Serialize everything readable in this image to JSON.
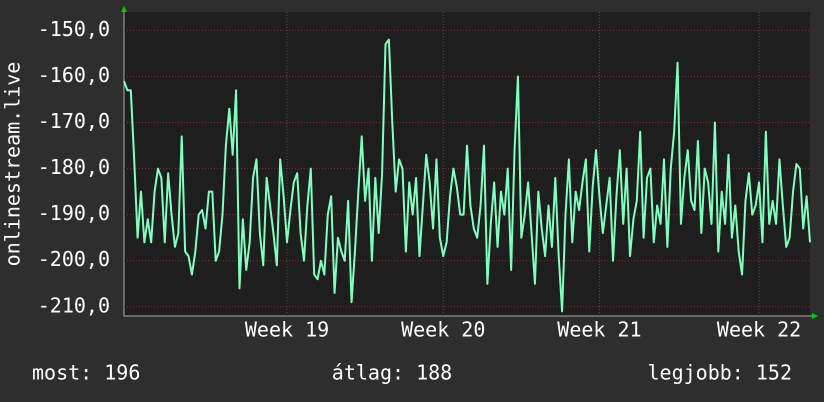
{
  "chart_data": {
    "type": "line",
    "y_label": "onlinestream.live",
    "ylim": [
      -212,
      -146
    ],
    "yticks": [
      {
        "value": -150,
        "label": "-150,0"
      },
      {
        "value": -160,
        "label": "-160,0"
      },
      {
        "value": -170,
        "label": "-170,0"
      },
      {
        "value": -180,
        "label": "-180,0"
      },
      {
        "value": -190,
        "label": "-190,0"
      },
      {
        "value": -200,
        "label": "-200,0"
      },
      {
        "value": -210,
        "label": "-210,0"
      }
    ],
    "xlim": [
      0,
      202
    ],
    "xticks": [
      {
        "value": 48,
        "label": "Week 19"
      },
      {
        "value": 94,
        "label": "Week 20"
      },
      {
        "value": 140,
        "label": "Week 21"
      },
      {
        "value": 187,
        "label": "Week 22"
      }
    ],
    "grid": true,
    "color": "#80ffc0",
    "values": [
      -161,
      -163,
      -163,
      -178,
      -195,
      -185,
      -196,
      -191,
      -196,
      -185,
      -180,
      -182,
      -196,
      -181,
      -190,
      -197,
      -194,
      -173,
      -198,
      -199,
      -203,
      -198,
      -190,
      -189,
      -193,
      -185,
      -185,
      -200,
      -198,
      -190,
      -175,
      -167,
      -177,
      -163,
      -206,
      -191,
      -202,
      -196,
      -182,
      -178,
      -194,
      -201,
      -182,
      -188,
      -194,
      -201,
      -178,
      -186,
      -196,
      -189,
      -183,
      -181,
      -194,
      -200,
      -188,
      -180,
      -203,
      -204,
      -200,
      -203,
      -190,
      -186,
      -207,
      -195,
      -198,
      -200,
      -187,
      -209,
      -198,
      -185,
      -173,
      -187,
      -180,
      -200,
      -182,
      -194,
      -181,
      -153,
      -152,
      -170,
      -185,
      -178,
      -180,
      -198,
      -183,
      -190,
      -182,
      -199,
      -188,
      -177,
      -183,
      -193,
      -178,
      -195,
      -199,
      -196,
      -186,
      -180,
      -184,
      -190,
      -190,
      -175,
      -188,
      -193,
      -195,
      -188,
      -175,
      -205,
      -192,
      -183,
      -197,
      -185,
      -190,
      -180,
      -202,
      -176,
      -160,
      -195,
      -190,
      -183,
      -194,
      -205,
      -185,
      -193,
      -199,
      -188,
      -197,
      -182,
      -199,
      -211,
      -190,
      -178,
      -196,
      -185,
      -189,
      -183,
      -178,
      -198,
      -184,
      -176,
      -186,
      -194,
      -188,
      -182,
      -200,
      -186,
      -176,
      -192,
      -180,
      -199,
      -191,
      -187,
      -172,
      -195,
      -182,
      -180,
      -196,
      -188,
      -192,
      -178,
      -197,
      -180,
      -172,
      -157,
      -192,
      -182,
      -176,
      -187,
      -189,
      -174,
      -194,
      -180,
      -183,
      -192,
      -170,
      -198,
      -185,
      -192,
      -177,
      -195,
      -188,
      -198,
      -203,
      -187,
      -181,
      -190,
      -188,
      -183,
      -196,
      -172,
      -192,
      -187,
      -192,
      -178,
      -188,
      -197,
      -195,
      -185,
      -179,
      -180,
      -193,
      -186,
      -196
    ],
    "stats": [
      "most: 196",
      "átlag: 188",
      "legjobb: 152"
    ]
  }
}
